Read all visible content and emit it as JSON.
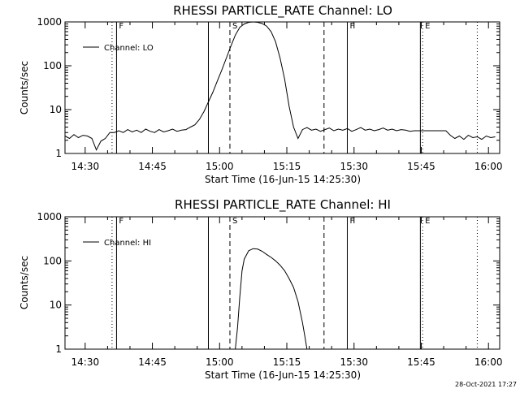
{
  "plots": [
    {
      "title": "RHESSI PARTICLE_RATE Channel: LO",
      "ylabel": "Counts/sec",
      "xlabel": "Start Time (16-Jun-15 14:25:30)",
      "legend": "Channel: LO",
      "x_ticks": [
        "14:30",
        "14:45",
        "15:00",
        "15:15",
        "15:30",
        "15:45",
        "16:00"
      ],
      "y_ticks": [
        "1",
        "10",
        "100",
        "1000"
      ],
      "markers": [
        "F",
        "S",
        "F",
        "E"
      ]
    },
    {
      "title": "RHESSI PARTICLE_RATE Channel: HI",
      "ylabel": "Counts/sec",
      "xlabel": "Start Time (16-Jun-15 14:25:30)",
      "legend": "Channel: HI",
      "x_ticks": [
        "14:30",
        "14:45",
        "15:00",
        "15:15",
        "15:30",
        "15:45",
        "16:00"
      ],
      "y_ticks": [
        "1",
        "10",
        "100",
        "1000"
      ],
      "markers": [
        "F",
        "S",
        "F",
        "E"
      ]
    }
  ],
  "timestamp": "28-Oct-2021 17:27",
  "chart_data": [
    {
      "type": "line",
      "title": "RHESSI PARTICLE_RATE Channel: LO",
      "xlabel": "Start Time (16-Jun-15 14:25:30)",
      "ylabel": "Counts/sec",
      "x_unit": "minutes after 14:25:30",
      "y_scale": "log",
      "ylim": [
        1,
        1000
      ],
      "xlim": [
        0,
        97
      ],
      "series": [
        {
          "name": "Channel: LO",
          "x": [
            0,
            1,
            2,
            3,
            4,
            5,
            6,
            7,
            8,
            9,
            10,
            11,
            12,
            13,
            14,
            15,
            16,
            17,
            18,
            19,
            20,
            21,
            22,
            23,
            24,
            25,
            26,
            27,
            28,
            29,
            30,
            31,
            32,
            33,
            34,
            35,
            36,
            37,
            38,
            39,
            40,
            41,
            42,
            43,
            44,
            45,
            46,
            47,
            48,
            49,
            50,
            51,
            52,
            53,
            54,
            55,
            56,
            57,
            58,
            59,
            60,
            61,
            62,
            63,
            64,
            65,
            66,
            67,
            68,
            69,
            70,
            71,
            72,
            73,
            74,
            75,
            76,
            77,
            78,
            79,
            80,
            81,
            82,
            83,
            84,
            85,
            86,
            87,
            88,
            89,
            90,
            91,
            92,
            93,
            94,
            95,
            96
          ],
          "y": [
            2.5,
            2.2,
            2.7,
            2.3,
            2.6,
            2.5,
            2.2,
            1.2,
            1.9,
            2.2,
            3.0,
            3.0,
            3.3,
            3.0,
            3.5,
            3.1,
            3.4,
            3.0,
            3.6,
            3.2,
            3.0,
            3.5,
            3.1,
            3.3,
            3.6,
            3.2,
            3.4,
            3.5,
            4.0,
            4.5,
            6,
            9,
            15,
            25,
            45,
            80,
            150,
            280,
            500,
            750,
            900,
            980,
            1000,
            980,
            920,
            800,
            600,
            350,
            150,
            50,
            12,
            4,
            2.2,
            3.5,
            3.9,
            3.4,
            3.6,
            3.2,
            3.5,
            3.8,
            3.3,
            3.6,
            3.4,
            3.7,
            3.2,
            3.5,
            3.9,
            3.4,
            3.6,
            3.3,
            3.5,
            3.8,
            3.4,
            3.6,
            3.3,
            3.5,
            3.4,
            3.2,
            3.3,
            3.3,
            3.3,
            3.3,
            3.3,
            3.3,
            3.3,
            3.3,
            2.6,
            2.2,
            2.5,
            2.1,
            2.6,
            2.3,
            2.4,
            2.1,
            2.5,
            2.3,
            2.4
          ]
        }
      ],
      "vertical_lines": [
        {
          "label": "",
          "x": 10.5,
          "style": "dotted"
        },
        {
          "label": "F",
          "x": 11.5,
          "style": "solid"
        },
        {
          "label": "",
          "x": 32.0,
          "style": "solid"
        },
        {
          "label": "S",
          "x": 36.8,
          "style": "dashed"
        },
        {
          "label": "",
          "x": 57.8,
          "style": "dashed"
        },
        {
          "label": "F",
          "x": 63.0,
          "style": "solid"
        },
        {
          "label": "",
          "x": 79.3,
          "style": "solid"
        },
        {
          "label": "E",
          "x": 79.8,
          "style": "dotted"
        },
        {
          "label": "",
          "x": 92.0,
          "style": "dotted"
        }
      ]
    },
    {
      "type": "line",
      "title": "RHESSI PARTICLE_RATE Channel: HI",
      "xlabel": "Start Time (16-Jun-15 14:25:30)",
      "ylabel": "Counts/sec",
      "x_unit": "minutes after 14:25:30",
      "y_scale": "log",
      "ylim": [
        1,
        1000
      ],
      "xlim": [
        0,
        97
      ],
      "series": [
        {
          "name": "Channel: HI",
          "x": [
            38,
            38.5,
            39,
            39.5,
            40,
            41,
            42,
            43,
            44,
            45,
            46,
            47,
            48,
            49,
            50,
            51,
            52,
            53,
            53.5,
            54
          ],
          "y": [
            1,
            3,
            15,
            60,
            110,
            170,
            190,
            185,
            165,
            140,
            120,
            100,
            80,
            60,
            40,
            25,
            12,
            4,
            2,
            1
          ]
        }
      ],
      "vertical_lines": [
        {
          "label": "",
          "x": 10.5,
          "style": "dotted"
        },
        {
          "label": "F",
          "x": 11.5,
          "style": "solid"
        },
        {
          "label": "",
          "x": 32.0,
          "style": "solid"
        },
        {
          "label": "S",
          "x": 36.8,
          "style": "dashed"
        },
        {
          "label": "",
          "x": 57.8,
          "style": "dashed"
        },
        {
          "label": "F",
          "x": 63.0,
          "style": "solid"
        },
        {
          "label": "",
          "x": 79.3,
          "style": "solid"
        },
        {
          "label": "E",
          "x": 79.8,
          "style": "dotted"
        },
        {
          "label": "",
          "x": 92.0,
          "style": "dotted"
        }
      ]
    }
  ]
}
